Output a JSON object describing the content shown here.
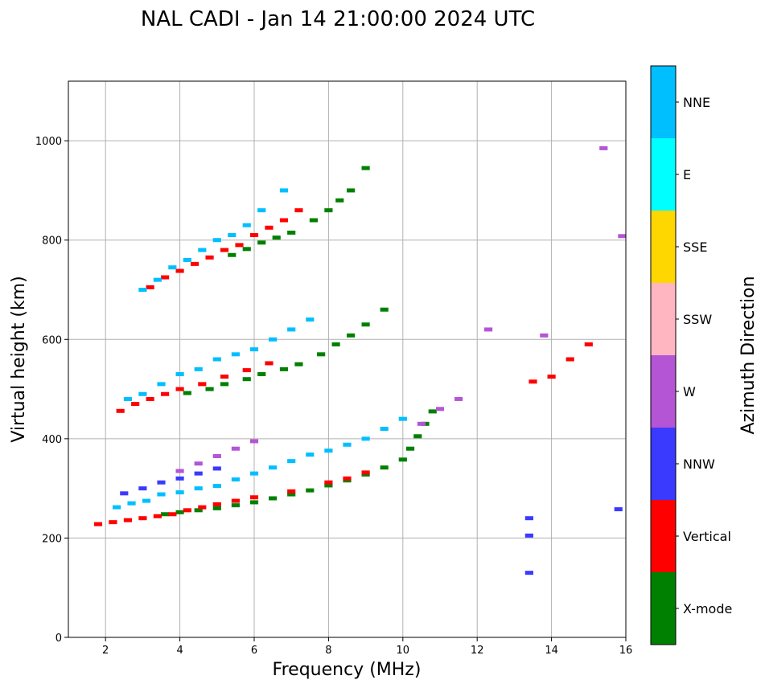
{
  "chart_data": {
    "type": "scatter",
    "title": "NAL CADI - Jan 14 21:00:00 2024 UTC",
    "xlabel": "Frequency (MHz)",
    "ylabel": "Virtual height (km)",
    "xlim": [
      1.0,
      16.0
    ],
    "ylim": [
      0,
      1120
    ],
    "xticks": [
      2,
      4,
      6,
      8,
      10,
      12,
      14,
      16
    ],
    "yticks": [
      0,
      200,
      400,
      600,
      800,
      1000
    ],
    "grid": true,
    "colorbar": {
      "label": "Azimuth Direction",
      "categories": [
        {
          "name": "X-mode",
          "color": "#008000"
        },
        {
          "name": "Vertical",
          "color": "#ff0000"
        },
        {
          "name": "NNW",
          "color": "#3a3aff"
        },
        {
          "name": "W",
          "color": "#b455d6"
        },
        {
          "name": "SSW",
          "color": "#ffb6c1"
        },
        {
          "name": "SSE",
          "color": "#ffd700"
        },
        {
          "name": "E",
          "color": "#00ffff"
        },
        {
          "name": "NNE",
          "color": "#00bfff"
        }
      ]
    },
    "traces": [
      {
        "name": "first-hop X-mode",
        "category": "X-mode",
        "points": [
          [
            3.6,
            248
          ],
          [
            4.0,
            252
          ],
          [
            4.5,
            256
          ],
          [
            5.0,
            260
          ],
          [
            5.5,
            266
          ],
          [
            6.0,
            272
          ],
          [
            6.5,
            280
          ],
          [
            7.0,
            288
          ],
          [
            7.5,
            296
          ],
          [
            8.0,
            306
          ],
          [
            8.5,
            316
          ],
          [
            9.0,
            328
          ],
          [
            9.5,
            342
          ],
          [
            10.0,
            358
          ],
          [
            10.2,
            380
          ],
          [
            10.4,
            405
          ],
          [
            10.6,
            430
          ],
          [
            10.8,
            455
          ]
        ]
      },
      {
        "name": "first-hop vertical",
        "category": "Vertical",
        "points": [
          [
            1.8,
            228
          ],
          [
            2.2,
            232
          ],
          [
            2.6,
            236
          ],
          [
            3.0,
            240
          ],
          [
            3.4,
            244
          ],
          [
            3.8,
            248
          ],
          [
            4.2,
            256
          ],
          [
            4.6,
            262
          ],
          [
            5.0,
            268
          ],
          [
            5.5,
            275
          ],
          [
            6.0,
            282
          ],
          [
            7.0,
            294
          ],
          [
            8.0,
            312
          ],
          [
            8.5,
            320
          ],
          [
            9.0,
            332
          ]
        ]
      },
      {
        "name": "first-hop scatter",
        "category": "NNE",
        "points": [
          [
            2.3,
            262
          ],
          [
            2.7,
            270
          ],
          [
            3.1,
            275
          ],
          [
            3.5,
            288
          ],
          [
            4.0,
            292
          ],
          [
            4.5,
            300
          ],
          [
            5.0,
            305
          ],
          [
            5.5,
            318
          ],
          [
            6.0,
            330
          ],
          [
            6.5,
            342
          ],
          [
            7.0,
            355
          ],
          [
            7.5,
            368
          ],
          [
            8.0,
            376
          ],
          [
            8.5,
            388
          ],
          [
            9.0,
            400
          ],
          [
            9.5,
            420
          ],
          [
            10.0,
            440
          ]
        ]
      },
      {
        "name": "first-hop NNW",
        "category": "NNW",
        "points": [
          [
            2.5,
            290
          ],
          [
            3.0,
            300
          ],
          [
            3.5,
            312
          ],
          [
            4.0,
            320
          ],
          [
            4.5,
            330
          ],
          [
            5.0,
            340
          ]
        ]
      },
      {
        "name": "first-hop W",
        "category": "W",
        "points": [
          [
            4.0,
            335
          ],
          [
            4.5,
            350
          ],
          [
            5.0,
            365
          ],
          [
            5.5,
            380
          ],
          [
            6.0,
            395
          ],
          [
            10.5,
            430
          ],
          [
            11.0,
            460
          ],
          [
            11.5,
            480
          ]
        ]
      },
      {
        "name": "second-hop X-mode",
        "category": "X-mode",
        "points": [
          [
            4.2,
            492
          ],
          [
            4.8,
            500
          ],
          [
            5.2,
            510
          ],
          [
            5.8,
            520
          ],
          [
            6.2,
            530
          ],
          [
            6.8,
            540
          ],
          [
            7.2,
            550
          ],
          [
            7.8,
            570
          ],
          [
            8.2,
            590
          ],
          [
            8.6,
            608
          ],
          [
            9.0,
            630
          ],
          [
            9.5,
            660
          ]
        ]
      },
      {
        "name": "second-hop vertical",
        "category": "Vertical",
        "points": [
          [
            2.4,
            456
          ],
          [
            2.8,
            470
          ],
          [
            3.2,
            480
          ],
          [
            3.6,
            490
          ],
          [
            4.0,
            500
          ],
          [
            4.6,
            510
          ],
          [
            5.2,
            525
          ],
          [
            5.8,
            538
          ],
          [
            6.4,
            552
          ],
          [
            13.5,
            515
          ],
          [
            14.0,
            525
          ],
          [
            14.5,
            560
          ],
          [
            15.0,
            590
          ]
        ]
      },
      {
        "name": "second-hop scatter",
        "category": "NNE",
        "points": [
          [
            2.6,
            480
          ],
          [
            3.0,
            490
          ],
          [
            3.5,
            510
          ],
          [
            4.0,
            530
          ],
          [
            4.5,
            540
          ],
          [
            5.0,
            560
          ],
          [
            5.5,
            570
          ],
          [
            6.0,
            580
          ],
          [
            6.5,
            600
          ],
          [
            7.0,
            620
          ],
          [
            7.5,
            640
          ]
        ]
      },
      {
        "name": "third-hop X-mode",
        "category": "X-mode",
        "points": [
          [
            5.4,
            770
          ],
          [
            5.8,
            782
          ],
          [
            6.2,
            795
          ],
          [
            6.6,
            805
          ],
          [
            7.0,
            815
          ],
          [
            7.6,
            840
          ],
          [
            8.0,
            860
          ],
          [
            8.3,
            880
          ],
          [
            8.6,
            900
          ],
          [
            9.0,
            945
          ]
        ]
      },
      {
        "name": "third-hop vertical",
        "category": "Vertical",
        "points": [
          [
            3.2,
            705
          ],
          [
            3.6,
            725
          ],
          [
            4.0,
            738
          ],
          [
            4.4,
            752
          ],
          [
            4.8,
            765
          ],
          [
            5.2,
            780
          ],
          [
            5.6,
            790
          ],
          [
            6.0,
            810
          ],
          [
            6.4,
            825
          ],
          [
            6.8,
            840
          ],
          [
            7.2,
            860
          ]
        ]
      },
      {
        "name": "third-hop scatter",
        "category": "NNE",
        "points": [
          [
            3.0,
            700
          ],
          [
            3.4,
            720
          ],
          [
            3.8,
            745
          ],
          [
            4.2,
            760
          ],
          [
            4.6,
            780
          ],
          [
            5.0,
            800
          ],
          [
            5.4,
            810
          ],
          [
            5.8,
            830
          ],
          [
            6.2,
            860
          ],
          [
            6.8,
            900
          ]
        ]
      },
      {
        "name": "far range echoes",
        "category": "NNW",
        "points": [
          [
            13.4,
            240
          ],
          [
            13.4,
            205
          ],
          [
            13.4,
            130
          ],
          [
            15.8,
            258
          ]
        ]
      },
      {
        "name": "high echoes",
        "category": "W",
        "points": [
          [
            15.4,
            985
          ],
          [
            12.3,
            620
          ],
          [
            13.8,
            608
          ],
          [
            15.9,
            808
          ]
        ]
      }
    ]
  }
}
